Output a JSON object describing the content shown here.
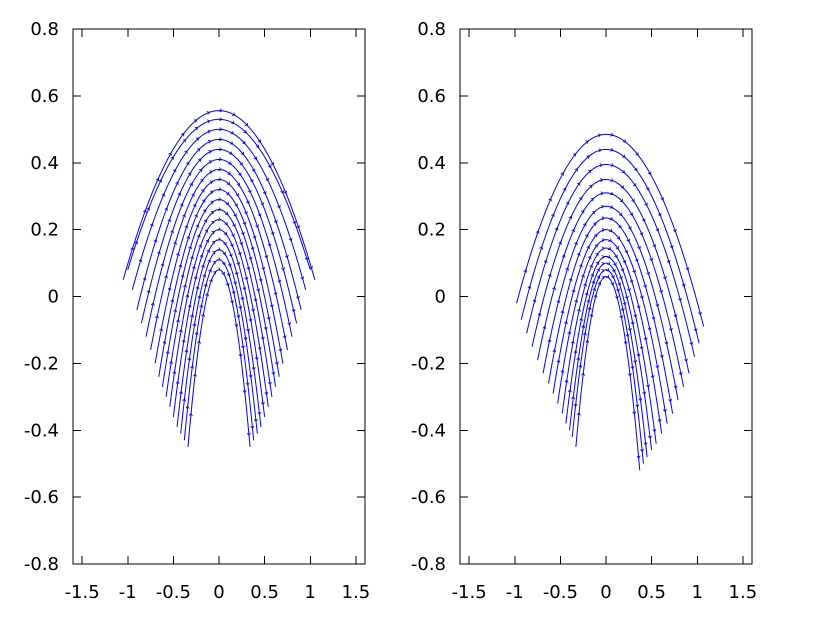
{
  "chart_data": [
    {
      "type": "line",
      "panel": "left",
      "description_kind": "family of parabola-shaped flow lines drawn with small direction arrows",
      "xlim": [
        -1.6,
        1.6
      ],
      "ylim": [
        -0.8,
        0.8
      ],
      "x_ticks": [
        -1.5,
        -1,
        -0.5,
        0,
        0.5,
        1,
        1.5
      ],
      "y_ticks": [
        -0.8,
        -0.6,
        -0.4,
        -0.2,
        0,
        0.2,
        0.4,
        0.6,
        0.8
      ],
      "x_tick_labels": [
        "-1.5",
        "-1",
        "-0.5",
        "0",
        "0.5",
        "1",
        "1.5"
      ],
      "y_tick_labels": [
        "-0.8",
        "-0.6",
        "-0.4",
        "-0.2",
        "0",
        "0.2",
        "0.4",
        "0.6",
        "0.8"
      ],
      "grid": false,
      "line_color": "#0000ff",
      "series": [
        {
          "apex": [
            0,
            0.556
          ],
          "x_range": [
            -1.05,
            1.05
          ],
          "end_y": 0.05
        },
        {
          "apex": [
            0,
            0.53
          ],
          "x_range": [
            -1.0,
            1.0
          ],
          "end_y": 0.08
        },
        {
          "apex": [
            0,
            0.5
          ],
          "x_range": [
            -0.95,
            0.95
          ],
          "end_y": 0.02
        },
        {
          "apex": [
            0,
            0.47
          ],
          "x_range": [
            -0.9,
            0.9
          ],
          "end_y": -0.04
        },
        {
          "apex": [
            0,
            0.44
          ],
          "x_range": [
            -0.85,
            0.85
          ],
          "end_y": -0.08
        },
        {
          "apex": [
            0,
            0.41
          ],
          "x_range": [
            -0.8,
            0.8
          ],
          "end_y": -0.12
        },
        {
          "apex": [
            0,
            0.38
          ],
          "x_range": [
            -0.75,
            0.75
          ],
          "end_y": -0.16
        },
        {
          "apex": [
            0,
            0.35
          ],
          "x_range": [
            -0.7,
            0.7
          ],
          "end_y": -0.2
        },
        {
          "apex": [
            0,
            0.32
          ],
          "x_range": [
            -0.66,
            0.66
          ],
          "end_y": -0.24
        },
        {
          "apex": [
            0,
            0.29
          ],
          "x_range": [
            -0.62,
            0.62
          ],
          "end_y": -0.27
        },
        {
          "apex": [
            0,
            0.26
          ],
          "x_range": [
            -0.58,
            0.58
          ],
          "end_y": -0.3
        },
        {
          "apex": [
            0,
            0.23
          ],
          "x_range": [
            -0.54,
            0.54
          ],
          "end_y": -0.33
        },
        {
          "apex": [
            0,
            0.2
          ],
          "x_range": [
            -0.5,
            0.5
          ],
          "end_y": -0.36
        },
        {
          "apex": [
            0,
            0.17
          ],
          "x_range": [
            -0.46,
            0.46
          ],
          "end_y": -0.39
        },
        {
          "apex": [
            0,
            0.14
          ],
          "x_range": [
            -0.42,
            0.42
          ],
          "end_y": -0.41
        },
        {
          "apex": [
            0,
            0.11
          ],
          "x_range": [
            -0.38,
            0.38
          ],
          "end_y": -0.43
        },
        {
          "apex": [
            0,
            0.08
          ],
          "x_range": [
            -0.34,
            0.34
          ],
          "end_y": -0.45
        }
      ]
    },
    {
      "type": "line",
      "panel": "right",
      "description_kind": "family of tilted nested parabola-shaped flow lines drawn with small direction arrows",
      "xlim": [
        -1.6,
        1.6
      ],
      "ylim": [
        -0.8,
        0.8
      ],
      "x_ticks": [
        -1.5,
        -1,
        -0.5,
        0,
        0.5,
        1,
        1.5
      ],
      "y_ticks": [
        -0.8,
        -0.6,
        -0.4,
        -0.2,
        0,
        0.2,
        0.4,
        0.6,
        0.8
      ],
      "x_tick_labels": [
        "-1.5",
        "-1",
        "-0.5",
        "0",
        "0.5",
        "1",
        "1.5"
      ],
      "y_tick_labels": [
        "-0.8",
        "-0.6",
        "-0.4",
        "-0.2",
        "0",
        "0.2",
        "0.4",
        "0.6",
        "0.8"
      ],
      "grid": false,
      "line_color": "#0000ff",
      "series": [
        {
          "apex": [
            0.0,
            0.485
          ],
          "left": [
            -0.98,
            -0.02
          ],
          "right": [
            1.07,
            -0.09
          ]
        },
        {
          "apex": [
            0.0,
            0.44
          ],
          "left": [
            -0.93,
            -0.07
          ],
          "right": [
            1.02,
            -0.14
          ]
        },
        {
          "apex": [
            0.0,
            0.395
          ],
          "left": [
            -0.87,
            -0.11
          ],
          "right": [
            0.97,
            -0.18
          ]
        },
        {
          "apex": [
            0.0,
            0.35
          ],
          "left": [
            -0.81,
            -0.15
          ],
          "right": [
            0.91,
            -0.23
          ]
        },
        {
          "apex": [
            0.0,
            0.31
          ],
          "left": [
            -0.75,
            -0.19
          ],
          "right": [
            0.85,
            -0.27
          ]
        },
        {
          "apex": [
            0.0,
            0.27
          ],
          "left": [
            -0.69,
            -0.23
          ],
          "right": [
            0.79,
            -0.31
          ]
        },
        {
          "apex": [
            0.0,
            0.235
          ],
          "left": [
            -0.63,
            -0.26
          ],
          "right": [
            0.73,
            -0.35
          ]
        },
        {
          "apex": [
            0.0,
            0.2
          ],
          "left": [
            -0.58,
            -0.29
          ],
          "right": [
            0.67,
            -0.38
          ]
        },
        {
          "apex": [
            0.0,
            0.17
          ],
          "left": [
            -0.53,
            -0.32
          ],
          "right": [
            0.61,
            -0.41
          ]
        },
        {
          "apex": [
            0.0,
            0.145
          ],
          "left": [
            -0.48,
            -0.35
          ],
          "right": [
            0.55,
            -0.44
          ]
        },
        {
          "apex": [
            0.0,
            0.12
          ],
          "left": [
            -0.44,
            -0.38
          ],
          "right": [
            0.5,
            -0.46
          ]
        },
        {
          "apex": [
            0.0,
            0.1
          ],
          "left": [
            -0.4,
            -0.4
          ],
          "right": [
            0.45,
            -0.48
          ]
        },
        {
          "apex": [
            0.0,
            0.08
          ],
          "left": [
            -0.37,
            -0.42
          ],
          "right": [
            0.41,
            -0.5
          ]
        },
        {
          "apex": [
            0.0,
            0.06
          ],
          "left": [
            -0.33,
            -0.45
          ],
          "right": [
            0.37,
            -0.52
          ]
        }
      ]
    }
  ]
}
